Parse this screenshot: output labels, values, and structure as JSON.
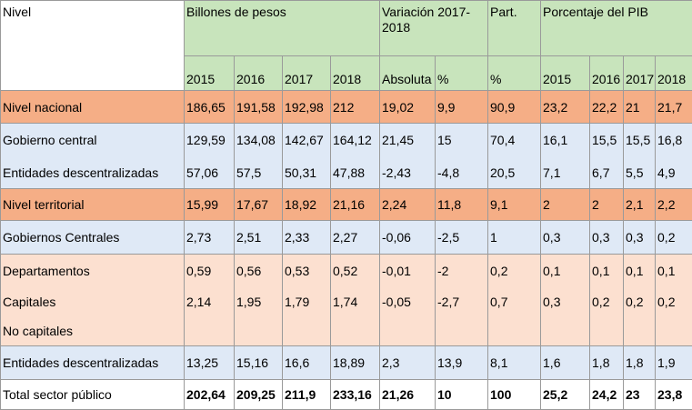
{
  "table": {
    "header": {
      "nivel": "Nivel",
      "billones": "Billones de pesos",
      "variacion": "Variación 2017-2018",
      "part": "Part.",
      "pib": "Porcentaje del PIB",
      "years": [
        "2015",
        "2016",
        "2017",
        "2018"
      ],
      "absoluta": "Absoluta",
      "pct": "%",
      "part_pct": "%",
      "pib_years": [
        "2015",
        "2016",
        "2017",
        "2018"
      ]
    },
    "rows": [
      {
        "label": "Nivel nacional",
        "values": [
          "186,65",
          "191,58",
          "192,98",
          "212",
          "19,02",
          "9,9",
          "90,9",
          "23,2",
          "22,2",
          "21",
          "21,7"
        ]
      },
      {
        "label": "Gobierno central",
        "values": [
          "129,59",
          "134,08",
          "142,67",
          "164,12",
          "21,45",
          "15",
          "70,4",
          "16,1",
          "15,5",
          "15,5",
          "16,8"
        ]
      },
      {
        "label": "Entidades descentralizadas",
        "values": [
          "57,06",
          "57,5",
          "50,31",
          "47,88",
          "-2,43",
          "-4,8",
          "20,5",
          "7,1",
          "6,7",
          "5,5",
          "4,9"
        ]
      },
      {
        "label": "Nivel territorial",
        "values": [
          "15,99",
          "17,67",
          "18,92",
          "21,16",
          "2,24",
          "11,8",
          "9,1",
          "2",
          "2",
          "2,1",
          "2,2"
        ]
      },
      {
        "label": "Gobiernos Centrales",
        "values": [
          "2,73",
          "2,51",
          "2,33",
          "2,27",
          "-0,06",
          "-2,5",
          "1",
          "0,3",
          "0,3",
          "0,3",
          "0,2"
        ]
      },
      {
        "label": "Departamentos",
        "values": [
          "0,59",
          "0,56",
          "0,53",
          "0,52",
          "-0,01",
          "-2",
          "0,2",
          "0,1",
          "0,1",
          "0,1",
          "0,1"
        ]
      },
      {
        "label": "Capitales",
        "values": [
          "2,14",
          "1,95",
          "1,79",
          "1,74",
          "-0,05",
          "-2,7",
          "0,7",
          "0,3",
          "0,2",
          "0,2",
          "0,2"
        ]
      },
      {
        "label": "No capitales",
        "values": [
          "",
          "",
          "",
          "",
          "",
          "",
          "",
          "",
          "",
          "",
          ""
        ]
      },
      {
        "label": "Entidades descentralizadas",
        "values": [
          "13,25",
          "15,16",
          "16,6",
          "18,89",
          "2,3",
          "13,9",
          "8,1",
          "1,6",
          "1,8",
          "1,8",
          "1,9"
        ]
      },
      {
        "label": "Total sector público",
        "values": [
          "202,64",
          "209,25",
          "211,9",
          "233,16",
          "21,26",
          "10",
          "100",
          "25,2",
          "24,2",
          "23",
          "23,8"
        ]
      }
    ]
  }
}
